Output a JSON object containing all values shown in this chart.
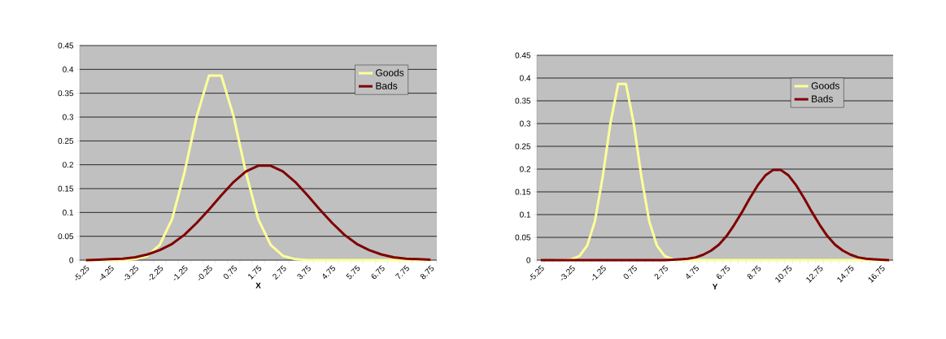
{
  "chart_data": [
    {
      "type": "line",
      "xlabel": "X",
      "categories": [
        "-5.25",
        null,
        "-4.25",
        null,
        "-3.25",
        null,
        "-2.25",
        null,
        "-1.25",
        null,
        "-0.25",
        null,
        "0.75",
        null,
        "1.75",
        null,
        "2.75",
        null,
        "3.75",
        null,
        "4.75",
        null,
        "5.75",
        null,
        "6.75",
        null,
        "7.75",
        null,
        "8.75"
      ],
      "series": [
        {
          "name": "Goods",
          "color": "#ffff99",
          "values": [
            0,
            0,
            0,
            0,
            0.002,
            0.009,
            0.032,
            0.086,
            0.183,
            0.301,
            0.387,
            0.387,
            0.301,
            0.183,
            0.086,
            0.032,
            0.009,
            0.002,
            0,
            0,
            0,
            0,
            0,
            0,
            0,
            0,
            0,
            0,
            0
          ]
        },
        {
          "name": "Bads",
          "color": "#800000",
          "values": [
            0,
            0.001,
            0.002,
            0.003,
            0.006,
            0.012,
            0.021,
            0.034,
            0.053,
            0.078,
            0.106,
            0.136,
            0.164,
            0.186,
            0.198,
            0.198,
            0.186,
            0.164,
            0.136,
            0.106,
            0.078,
            0.053,
            0.034,
            0.021,
            0.012,
            0.006,
            0.003,
            0.002,
            0.001
          ]
        }
      ],
      "ylim": [
        0,
        0.45
      ],
      "yticks": [
        0,
        0.05,
        0.1,
        0.15,
        0.2,
        0.25,
        0.3,
        0.35,
        0.4,
        0.45
      ],
      "grid": "y",
      "legend": "top right",
      "marker": "none",
      "line_style": "solid"
    },
    {
      "type": "line",
      "xlabel": "Y",
      "categories": [
        "-5.25",
        null,
        null,
        null,
        "-3.25",
        null,
        null,
        null,
        "-1.25",
        null,
        null,
        null,
        "0.75",
        null,
        null,
        null,
        "2.75",
        null,
        null,
        null,
        "4.75",
        null,
        null,
        null,
        "6.75",
        null,
        null,
        null,
        "8.75",
        null,
        null,
        null,
        "10.75",
        null,
        null,
        null,
        "12.75",
        null,
        null,
        null,
        "14.75",
        null,
        null,
        null,
        "16.75",
        null
      ],
      "series": [
        {
          "name": "Goods",
          "color": "#ffff99",
          "values": [
            null,
            null,
            0,
            0,
            0.002,
            0.009,
            0.032,
            0.086,
            0.183,
            0.301,
            0.387,
            0.387,
            0.301,
            0.183,
            0.086,
            0.032,
            0.009,
            0.002,
            0,
            0,
            0,
            0,
            0,
            0,
            0,
            0,
            0,
            0,
            0,
            0,
            0,
            0,
            0,
            0,
            0,
            0,
            0,
            0,
            0,
            0,
            0,
            0,
            0,
            0,
            0,
            0
          ]
        },
        {
          "name": "Bads",
          "color": "#800000",
          "values": [
            0,
            0,
            0,
            0,
            0,
            0,
            0,
            0,
            0,
            0,
            0,
            0,
            0,
            0,
            0,
            0,
            0,
            0.001,
            0.002,
            0.003,
            0.006,
            0.012,
            0.021,
            0.034,
            0.053,
            0.078,
            0.106,
            0.136,
            0.164,
            0.186,
            0.198,
            0.198,
            0.186,
            0.164,
            0.136,
            0.106,
            0.078,
            0.053,
            0.034,
            0.021,
            0.012,
            0.006,
            0.003,
            0.002,
            0.001,
            0
          ]
        }
      ],
      "ylim": [
        0,
        0.45
      ],
      "yticks": [
        0,
        0.05,
        0.1,
        0.15,
        0.2,
        0.25,
        0.3,
        0.35,
        0.4,
        0.45
      ],
      "grid": "y",
      "legend": "top right",
      "marker": "none",
      "line_style": "solid"
    }
  ]
}
